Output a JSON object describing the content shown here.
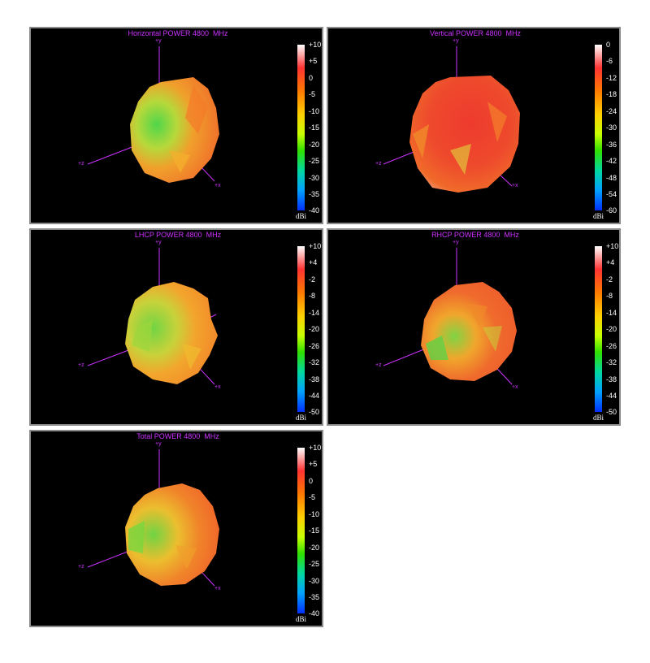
{
  "panels": [
    {
      "id": "horizontal",
      "title": "Horizontal POWER 4800  MHz",
      "scale_ticks": [
        "+10",
        "+5",
        "0",
        "-5",
        "-10",
        "-15",
        "-20",
        "-25",
        "-30",
        "-35",
        "-40"
      ],
      "unit": "dBi",
      "axis_labels": {
        "y": "+y",
        "x": "+x",
        "z": "+z"
      },
      "pattern_colors": [
        "#f06a2a",
        "#e8c42e",
        "#4fd64a"
      ]
    },
    {
      "id": "vertical",
      "title": "Vertical POWER 4800  MHz",
      "scale_ticks": [
        "0",
        "-6",
        "-12",
        "-18",
        "-24",
        "-30",
        "-36",
        "-42",
        "-48",
        "-54",
        "-60"
      ],
      "unit": "dBi",
      "axis_labels": {
        "y": "+y",
        "x": "+x",
        "z": "+z"
      },
      "pattern_colors": [
        "#ee3a2e",
        "#f06a2a",
        "#e0c43a"
      ]
    },
    {
      "id": "lhcp",
      "title": "LHCP POWER 4800  MHz",
      "scale_ticks": [
        "+10",
        "+4",
        "-2",
        "-8",
        "-14",
        "-20",
        "-26",
        "-32",
        "-38",
        "-44",
        "-50"
      ],
      "unit": "dBi",
      "axis_labels": {
        "y": "+y",
        "x": "+x",
        "z": "+z"
      },
      "pattern_colors": [
        "#f3842a",
        "#e8c42e",
        "#6fd444"
      ]
    },
    {
      "id": "rhcp",
      "title": "RHCP POWER 4800  MHz",
      "scale_ticks": [
        "+10",
        "+4",
        "-2",
        "-8",
        "-14",
        "-20",
        "-26",
        "-32",
        "-38",
        "-44",
        "-50"
      ],
      "unit": "dBi",
      "axis_labels": {
        "y": "+y",
        "x": "+x",
        "z": "+z"
      },
      "pattern_colors": [
        "#ef5a2c",
        "#f08a2a",
        "#7fd444"
      ]
    },
    {
      "id": "total",
      "title": "Total POWER 4800  MHz",
      "scale_ticks": [
        "+10",
        "+5",
        "0",
        "-5",
        "-10",
        "-15",
        "-20",
        "-25",
        "-30",
        "-35",
        "-40"
      ],
      "unit": "dBi",
      "axis_labels": {
        "y": "+y",
        "x": "+x",
        "z": "+z"
      },
      "pattern_colors": [
        "#f0622a",
        "#ecbe2e",
        "#6ed444"
      ]
    }
  ],
  "colors": {
    "panel_background": "#000000",
    "title_text": "#cc33ff",
    "axis_line": "#cc33ff",
    "scale_text": "#ffffff",
    "colormap": [
      "#ffffff",
      "#ff3333",
      "#ff7a00",
      "#ffd000",
      "#c8ff00",
      "#30e000",
      "#00d8a0",
      "#00a0ff",
      "#0030ff"
    ]
  }
}
